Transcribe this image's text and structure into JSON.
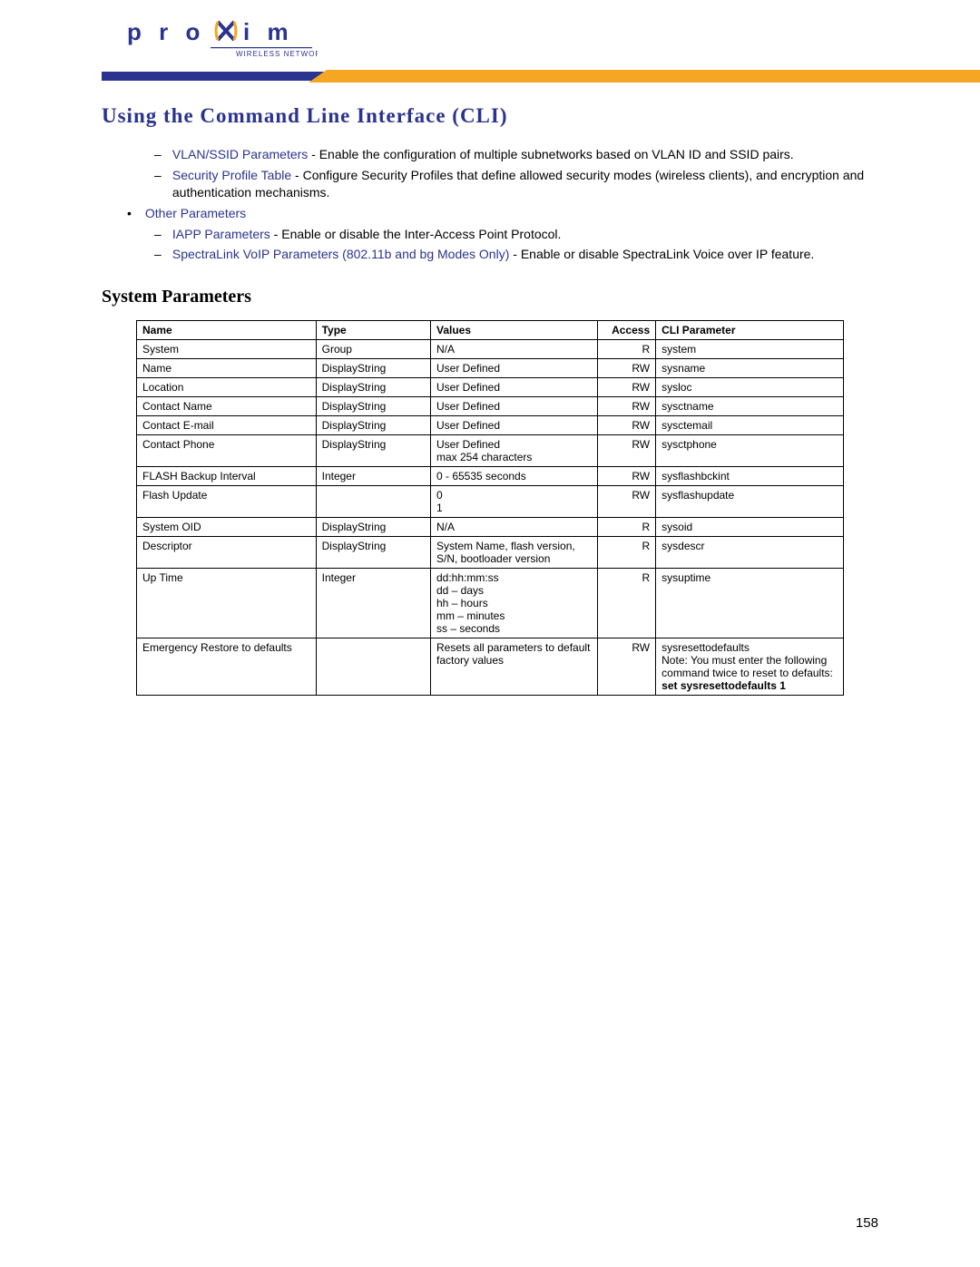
{
  "logo": {
    "brand": "proxim",
    "tagline": "WIRELESS NETWORKS",
    "color_primary": "#2a338f",
    "color_accent": "#f5a623"
  },
  "page_title": "Using the Command Line Interface (CLI)",
  "section_title": "System Parameters",
  "page_number": "158",
  "bullets": {
    "sub1_link": "VLAN/SSID Parameters",
    "sub1_text": " - Enable the configuration of multiple subnetworks based on VLAN ID and SSID pairs.",
    "sub2_link": "Security Profile Table",
    "sub2_text": " - Configure Security Profiles that define allowed security modes (wireless clients), and encryption and authentication mechanisms.",
    "top_link": "Other Parameters",
    "sub3_link": "IAPP Parameters",
    "sub3_text": " - Enable or disable the Inter-Access Point Protocol.",
    "sub4_link": "SpectraLink VoIP Parameters (802.11b and bg Modes Only)",
    "sub4_text": " - Enable or disable SpectraLink Voice over IP feature."
  },
  "table": {
    "headers": {
      "name": "Name",
      "type": "Type",
      "values": "Values",
      "access": "Access",
      "cli": "CLI Parameter"
    },
    "rows": [
      {
        "name": "System",
        "type": "Group",
        "values": "N/A",
        "access": "R",
        "cli": "system"
      },
      {
        "name": "Name",
        "type": "DisplayString",
        "values": "User Defined",
        "access": "RW",
        "cli": "sysname"
      },
      {
        "name": "Location",
        "type": "DisplayString",
        "values": "User Defined",
        "access": "RW",
        "cli": "sysloc"
      },
      {
        "name": "Contact Name",
        "type": "DisplayString",
        "values": "User Defined",
        "access": "RW",
        "cli": "sysctname"
      },
      {
        "name": "Contact E-mail",
        "type": "DisplayString",
        "values": "User Defined",
        "access": "RW",
        "cli": "sysctemail"
      },
      {
        "name": "Contact Phone",
        "type": "DisplayString",
        "values": "User Defined\nmax 254 characters",
        "access": "RW",
        "cli": "sysctphone"
      },
      {
        "name": "FLASH Backup Interval",
        "type": "Integer",
        "values": "0 - 65535 seconds",
        "access": "RW",
        "cli": "sysflashbckint"
      },
      {
        "name": "Flash Update",
        "type": "",
        "values": "0\n1",
        "access": "RW",
        "cli": "sysflashupdate"
      },
      {
        "name": "System OID",
        "type": "DisplayString",
        "values": "N/A",
        "access": "R",
        "cli": "sysoid"
      },
      {
        "name": "Descriptor",
        "type": "DisplayString",
        "values": "System Name, flash version, S/N, bootloader version",
        "access": "R",
        "cli": "sysdescr"
      },
      {
        "name": "Up Time",
        "type": "Integer",
        "values": "dd:hh:mm:ss\ndd – days\nhh – hours\nmm – minutes\nss – seconds",
        "access": "R",
        "cli": "sysuptime"
      },
      {
        "name": "Emergency Restore to defaults",
        "type": "",
        "values": "Resets all parameters to default factory values",
        "access": "RW",
        "cli": "sysresettodefaults",
        "cli_note": "Note: You must enter the following command twice to reset to defaults:",
        "cli_bold": "set sysresettodefaults 1"
      }
    ]
  }
}
